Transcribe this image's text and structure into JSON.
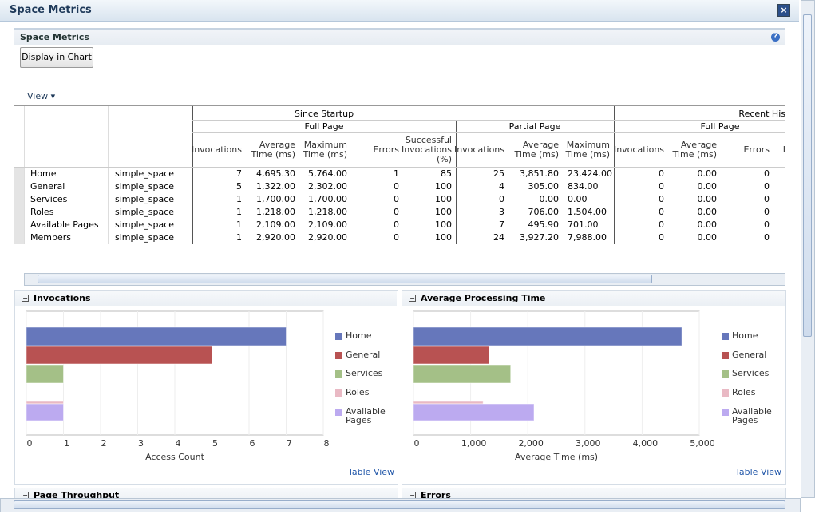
{
  "dialog": {
    "title": "Space Metrics"
  },
  "panel": {
    "title": "Space Metrics",
    "button": "Display in Chart",
    "menu": "View"
  },
  "table": {
    "groups": [
      "Since Startup",
      "Recent His"
    ],
    "subgroups": [
      "Full Page",
      "Partial Page",
      "Full Page"
    ],
    "columns": [
      "Invocations",
      "Average Time (ms)",
      "Maximum Time (ms)",
      "Errors",
      "Successful Invocations (%)",
      "Invocations",
      "Average Time (ms)",
      "Maximum Time (ms)",
      "Invocations",
      "Average Time (ms)",
      "Errors",
      "I"
    ],
    "rows": [
      [
        "Home",
        "simple_space",
        "7",
        "4,695.30",
        "5,764.00",
        "1",
        "85",
        "25",
        "3,851.80",
        "23,424.00",
        "0",
        "0.00",
        "0"
      ],
      [
        "General",
        "simple_space",
        "5",
        "1,322.00",
        "2,302.00",
        "0",
        "100",
        "4",
        "305.00",
        "834.00",
        "0",
        "0.00",
        "0"
      ],
      [
        "Services",
        "simple_space",
        "1",
        "1,700.00",
        "1,700.00",
        "0",
        "100",
        "0",
        "0.00",
        "0.00",
        "0",
        "0.00",
        "0"
      ],
      [
        "Roles",
        "simple_space",
        "1",
        "1,218.00",
        "1,218.00",
        "0",
        "100",
        "3",
        "706.00",
        "1,504.00",
        "0",
        "0.00",
        "0"
      ],
      [
        "Available Pages",
        "simple_space",
        "1",
        "2,109.00",
        "2,109.00",
        "0",
        "100",
        "7",
        "495.90",
        "701.00",
        "0",
        "0.00",
        "0"
      ],
      [
        "Members",
        "simple_space",
        "1",
        "2,920.00",
        "2,920.00",
        "0",
        "100",
        "24",
        "3,927.20",
        "7,988.00",
        "0",
        "0.00",
        "0"
      ]
    ]
  },
  "chart_data": [
    {
      "type": "bar",
      "orientation": "horizontal",
      "title": "Invocations",
      "xlabel": "Access Count",
      "link": "Table View",
      "series": [
        {
          "name": "Home",
          "color": "#6677bb",
          "values": [
            7
          ]
        },
        {
          "name": "General",
          "color": "#b85252",
          "values": [
            5
          ]
        },
        {
          "name": "Services",
          "color": "#a4c087",
          "values": [
            1
          ]
        },
        {
          "name": "Roles",
          "color": "#e9b9c4",
          "values": [
            1
          ]
        },
        {
          "name": "Available Pages",
          "color": "#bcaaf0",
          "values": [
            1
          ]
        }
      ],
      "xlim": [
        0,
        8
      ],
      "xticks": [
        0,
        1,
        2,
        3,
        4,
        5,
        6,
        7,
        8
      ],
      "grid": true
    },
    {
      "type": "bar",
      "orientation": "horizontal",
      "title": "Average Processing Time",
      "xlabel": "Average Time (ms)",
      "link": "Table View",
      "series": [
        {
          "name": "Home",
          "color": "#6677bb",
          "values": [
            4695.3
          ]
        },
        {
          "name": "General",
          "color": "#b85252",
          "values": [
            1322
          ]
        },
        {
          "name": "Services",
          "color": "#a4c087",
          "values": [
            1700
          ]
        },
        {
          "name": "Roles",
          "color": "#e9b9c4",
          "values": [
            1218
          ]
        },
        {
          "name": "Available Pages",
          "color": "#bcaaf0",
          "values": [
            2109
          ]
        }
      ],
      "xlim": [
        0,
        5000
      ],
      "xticks": [
        0,
        {
          "value": 1000,
          "label": "1,000"
        },
        {
          "value": 2000,
          "label": "2,000"
        },
        {
          "value": 3000,
          "label": "3,000"
        },
        {
          "value": 4000,
          "label": "4,000"
        },
        {
          "value": 5000,
          "label": "5,000"
        }
      ],
      "grid": true
    }
  ],
  "sections": [
    "Page Throughput",
    "Errors"
  ]
}
